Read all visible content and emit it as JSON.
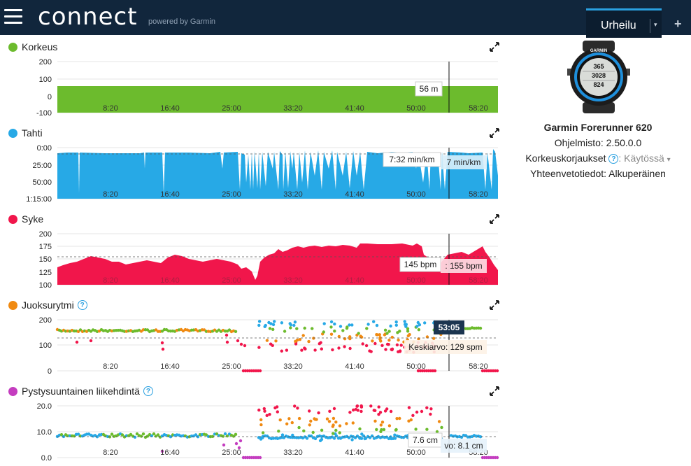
{
  "header": {
    "logo": "connect",
    "powered_by": "powered by Garmin",
    "sport_selector": "Urheilu",
    "add_label": "+"
  },
  "charts": [
    {
      "title": "Korkeus",
      "color": "#6cbb2d",
      "y_ticks": [
        "200",
        "100",
        "0",
        "-100"
      ],
      "x_ticks": [
        "8:20",
        "16:40",
        "25:00",
        "33:20",
        "41:40",
        "50:00",
        "58:20"
      ],
      "tooltip": "56 m"
    },
    {
      "title": "Tahti",
      "color": "#27a9e6",
      "y_ticks": [
        "0:00",
        "25:00",
        "50:00",
        "1:15:00"
      ],
      "x_ticks": [
        "8:20",
        "16:40",
        "25:00",
        "33:20",
        "41:40",
        "50:00",
        "58:20"
      ],
      "tooltip": "7:32 min/km",
      "avg_tooltip": "7 min/km"
    },
    {
      "title": "Syke",
      "color": "#f1164b",
      "y_ticks": [
        "200",
        "175",
        "150",
        "125",
        "100"
      ],
      "x_ticks": [
        "8:20",
        "16:40",
        "25:00",
        "33:20",
        "41:40",
        "50:00",
        "58:20"
      ],
      "tooltip": "145 bpm",
      "avg_tooltip": ": 155 bpm"
    },
    {
      "title": "Juoksurytmi",
      "color": "#f08a12",
      "y_ticks": [
        "200",
        "100",
        "0"
      ],
      "x_ticks": [
        "8:20",
        "16:40",
        "25:00",
        "33:20",
        "41:40",
        "50:00",
        "58:20"
      ],
      "time_flag": "53:05",
      "avg_tooltip": "Keskiarvo: 129 spm"
    },
    {
      "title": "Pystysuuntainen liikehdintä",
      "color": "#c43dbf",
      "y_ticks": [
        "20.0",
        "10.0",
        "0.0"
      ],
      "x_ticks": [
        "8:20",
        "16:40",
        "25:00",
        "33:20",
        "41:40",
        "50:00",
        "58:20"
      ],
      "tooltip": "7.6 cm",
      "avg_tooltip": "vo: 8.1 cm"
    }
  ],
  "device": {
    "watch_brand": "GARMIN",
    "watch_readout": [
      "365",
      "3028",
      "824"
    ],
    "name": "Garmin Forerunner 620",
    "software_label": "Ohjelmisto: 2.50.0.0",
    "elevation_corrections_label": "Korkeuskorjaukset",
    "elevation_corrections_value": ": Käytössä",
    "summary_label": "Yhteenvetotiedot: Alkuperäinen"
  },
  "colors": {
    "header_bg": "#11263c",
    "accent": "#2aa0e0",
    "elevation": "#6cbb2d",
    "pace": "#27a9e6",
    "heart_rate": "#f1164b",
    "cadence": "#f08a12",
    "vertical_oscillation": "#c43dbf"
  }
}
